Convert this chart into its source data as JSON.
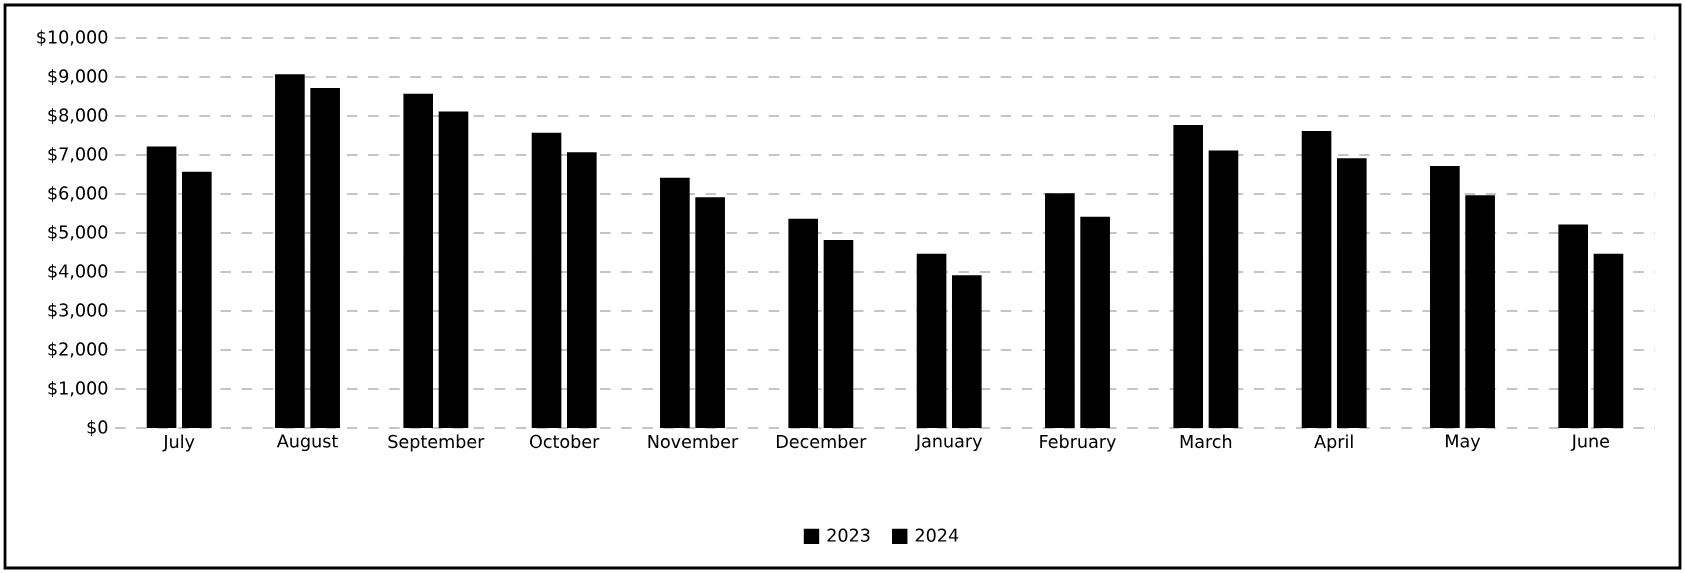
{
  "chart_data": {
    "type": "bar",
    "categories": [
      "July",
      "August",
      "September",
      "October",
      "November",
      "December",
      "January",
      "February",
      "March",
      "April",
      "May",
      "June"
    ],
    "series": [
      {
        "name": "2023",
        "color": "#000000",
        "values": [
          7200,
          9050,
          8550,
          7550,
          6400,
          5350,
          4450,
          6000,
          7750,
          7600,
          6700,
          5200
        ]
      },
      {
        "name": "2024",
        "color": "#000000",
        "values": [
          6550,
          8700,
          8100,
          7050,
          5900,
          4800,
          3900,
          5400,
          7100,
          6900,
          5950,
          4450
        ]
      }
    ],
    "ylim": [
      0,
      10000
    ],
    "yticks": [
      {
        "value": 0,
        "label": "$0"
      },
      {
        "value": 1000,
        "label": "$1,000"
      },
      {
        "value": 2000,
        "label": "$2,000"
      },
      {
        "value": 3000,
        "label": "$3,000"
      },
      {
        "value": 4000,
        "label": "$4,000"
      },
      {
        "value": 5000,
        "label": "$5,000"
      },
      {
        "value": 6000,
        "label": "$6,000"
      },
      {
        "value": 7000,
        "label": "$7,000"
      },
      {
        "value": 8000,
        "label": "$8,000"
      },
      {
        "value": 9000,
        "label": "$9,000"
      },
      {
        "value": 10000,
        "label": "$10,000"
      }
    ],
    "grid": "y",
    "legend": "bottom"
  }
}
